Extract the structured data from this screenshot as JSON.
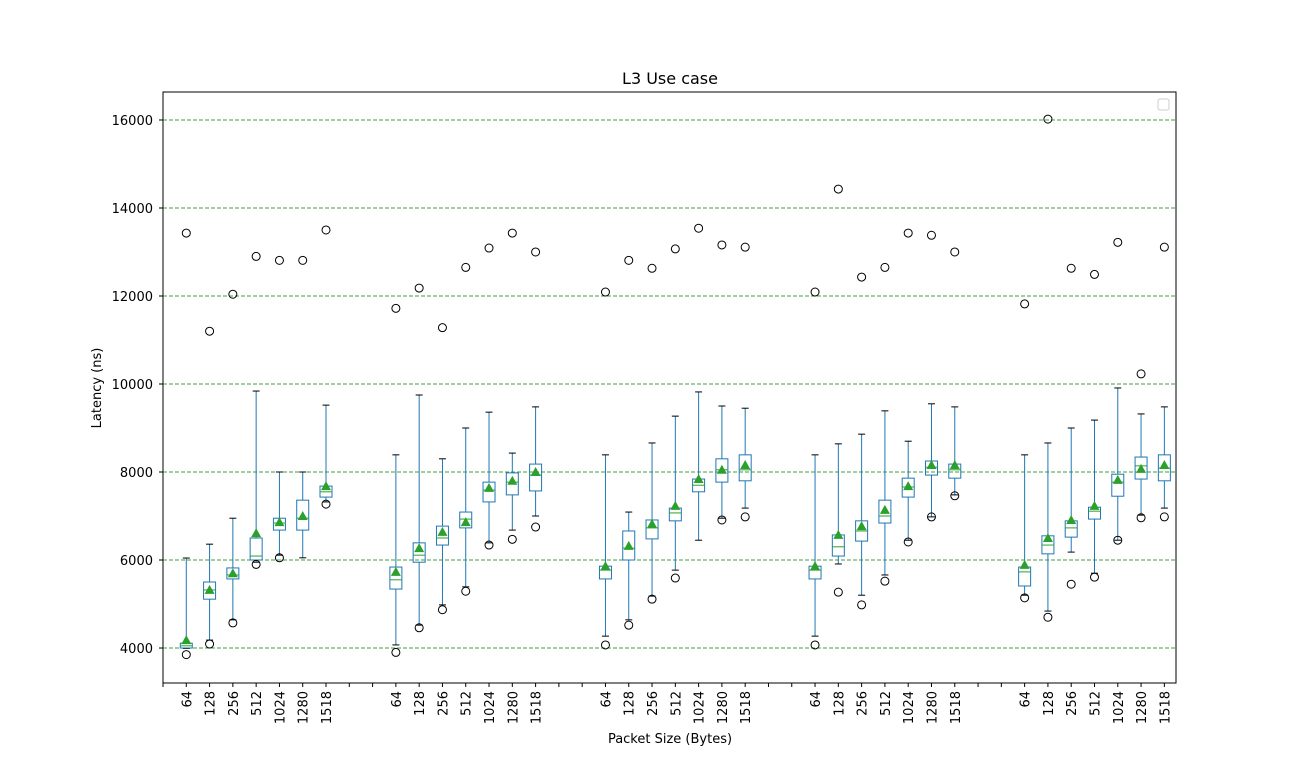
{
  "chart_data": {
    "type": "box",
    "title": "L3 Use case",
    "x_label": "Packet Size (Bytes)",
    "y_label": "Latency (ns)",
    "categories": [
      null,
      "64",
      "128",
      "256",
      "512",
      "1024",
      "1280",
      "1518",
      null,
      null,
      "64",
      "128",
      "256",
      "512",
      "1024",
      "1280",
      "1518",
      null,
      null,
      "64",
      "128",
      "256",
      "512",
      "1024",
      "1280",
      "1518",
      null,
      null,
      "64",
      "128",
      "256",
      "512",
      "1024",
      "1280",
      "1518",
      null,
      null,
      "64",
      "128",
      "256",
      "512",
      "1024",
      "1280",
      "1518"
    ],
    "whisker_low": [
      null,
      3990,
      4180,
      4640,
      5950,
      6110,
      6050,
      7320,
      null,
      null,
      4070,
      4520,
      4980,
      5390,
      6390,
      6680,
      7000,
      null,
      null,
      4270,
      4640,
      5180,
      5770,
      6450,
      6950,
      7180,
      null,
      null,
      4270,
      5910,
      5200,
      5660,
      6450,
      6980,
      7480,
      null,
      null,
      5200,
      4840,
      6180,
      5700,
      6450,
      7020,
      7180
    ],
    "q1": [
      null,
      4000,
      5110,
      5570,
      6000,
      6680,
      6680,
      7430,
      null,
      null,
      5340,
      5950,
      6340,
      6730,
      7320,
      7480,
      7570,
      null,
      null,
      5570,
      6000,
      6480,
      6890,
      7550,
      7770,
      7800,
      null,
      null,
      5570,
      6090,
      6430,
      6840,
      7430,
      7930,
      7860,
      null,
      null,
      5410,
      6140,
      6520,
      6930,
      7450,
      7840,
      7800
    ],
    "median": [
      null,
      4050,
      5320,
      5660,
      6090,
      6840,
      6950,
      7550,
      null,
      null,
      5550,
      6110,
      6500,
      6930,
      7590,
      7770,
      7930,
      null,
      null,
      5770,
      6270,
      6730,
      7070,
      7700,
      8050,
      8050,
      null,
      null,
      5770,
      6300,
      6660,
      7000,
      7660,
      8110,
      8050,
      null,
      null,
      5730,
      6340,
      6730,
      7110,
      7770,
      8140,
      8090
    ],
    "q3": [
      null,
      4110,
      5500,
      5820,
      6500,
      6950,
      7360,
      7680,
      null,
      null,
      5840,
      6390,
      6770,
      7090,
      7770,
      7980,
      8180,
      null,
      null,
      5860,
      6660,
      6910,
      7180,
      7840,
      8300,
      8390,
      null,
      null,
      5860,
      6570,
      6890,
      7360,
      7860,
      8250,
      8180,
      null,
      null,
      5840,
      6550,
      6890,
      7200,
      7950,
      8340,
      8390
    ],
    "whisker_high": [
      null,
      6045,
      6360,
      6950,
      9840,
      8000,
      8000,
      9520,
      null,
      null,
      8390,
      9750,
      8300,
      9000,
      9360,
      8430,
      9480,
      null,
      null,
      8390,
      7090,
      8660,
      9270,
      9820,
      9500,
      9450,
      null,
      null,
      8390,
      8640,
      8860,
      9390,
      8700,
      9550,
      9480,
      null,
      null,
      8390,
      8660,
      9000,
      9180,
      9910,
      9320,
      9480
    ],
    "mean": [
      null,
      4180,
      5320,
      5700,
      6610,
      6860,
      7000,
      7680,
      null,
      null,
      5730,
      6270,
      6640,
      6860,
      7640,
      7800,
      8000,
      null,
      null,
      5860,
      6320,
      6820,
      7230,
      7840,
      8050,
      8160,
      null,
      null,
      5860,
      6570,
      6770,
      7140,
      7680,
      8160,
      8160,
      null,
      null,
      5890,
      6500,
      6910,
      7230,
      7820,
      8070,
      8160
    ],
    "outliers": [
      null,
      [
        3850,
        13430
      ],
      [
        4090,
        11200
      ],
      [
        4570,
        12040
      ],
      [
        5900,
        12900
      ],
      [
        6050,
        12810
      ],
      [
        12810
      ],
      [
        7270,
        13500
      ],
      null,
      null,
      [
        3900,
        11720
      ],
      [
        4460,
        12180
      ],
      [
        4870,
        11280
      ],
      [
        5290,
        12650
      ],
      [
        6340,
        13090
      ],
      [
        6470,
        13430
      ],
      [
        6750,
        13000
      ],
      null,
      null,
      [
        4070,
        12090
      ],
      [
        4520,
        12810
      ],
      [
        5110,
        12630
      ],
      [
        5590,
        13070
      ],
      [
        13540
      ],
      [
        6910,
        13160
      ],
      [
        6980,
        13110
      ],
      null,
      null,
      [
        4070,
        12090
      ],
      [
        5270,
        14430
      ],
      [
        4980,
        12430
      ],
      [
        5520,
        12650
      ],
      [
        6410,
        13430
      ],
      [
        6980,
        13380
      ],
      [
        7460,
        13000
      ],
      null,
      null,
      [
        5140,
        11820
      ],
      [
        4700,
        16020
      ],
      [
        5450,
        12630
      ],
      [
        5610,
        12490
      ],
      [
        6450,
        13220
      ],
      [
        6960,
        10230
      ],
      [
        6980,
        13110
      ]
    ],
    "box_color": "#1f77b4",
    "median_color": "#2ca02c",
    "mean_color": "#2ca02c",
    "grid_color": "#008000",
    "ylim": [
      3205,
      16636
    ],
    "yticks": [
      4000,
      6000,
      8000,
      10000,
      12000,
      14000,
      16000
    ],
    "grid": true
  }
}
